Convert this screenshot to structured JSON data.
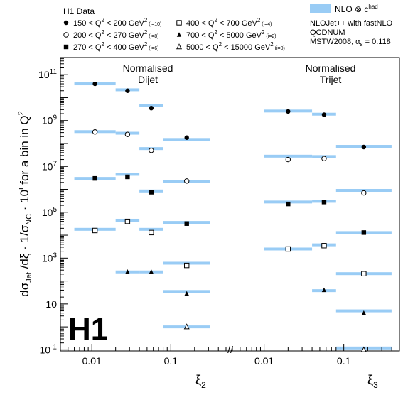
{
  "chart_data": {
    "type": "scatter",
    "y_axis": {
      "label_main": "dσ",
      "label_sub1": "Jet",
      "label_mid1": " /dξ · 1/σ",
      "label_sub2": "NC",
      "label_mid2": " · 10",
      "label_sup": "i",
      "label_tail": " for a bin in Q",
      "label_sup2": "2",
      "scale": "log",
      "ylim_log10": [
        -1.05,
        11.75
      ],
      "ticks": [
        {
          "value": 0.1,
          "label": "10",
          "sup": "-1"
        },
        {
          "value": 10,
          "label": "10",
          "sup": ""
        },
        {
          "value": 1000,
          "label": "10",
          "sup": "3"
        },
        {
          "value": 100000,
          "label": "10",
          "sup": "5"
        },
        {
          "value": 10000000,
          "label": "10",
          "sup": "7"
        },
        {
          "value": 1000000000,
          "label": "10",
          "sup": "9"
        },
        {
          "value": 100000000000,
          "label": "10",
          "sup": "11"
        }
      ]
    },
    "panels": [
      {
        "id": "dijet",
        "title_line1": "Normalised",
        "title_line2": "Dijet",
        "x_label": "ξ",
        "x_label_sub": "2",
        "x_scale": "log",
        "xlim": [
          0.004,
          0.5
        ],
        "x_ticks": [
          {
            "value": 0.01,
            "label": "0.01"
          },
          {
            "value": 0.1,
            "label": "0.1"
          }
        ],
        "bins": [
          [
            0.006,
            0.02
          ],
          [
            0.02,
            0.04
          ],
          [
            0.04,
            0.08
          ],
          [
            0.08,
            0.316
          ]
        ],
        "series": [
          {
            "q2_index": 10,
            "marker": "filled-circle",
            "data": [
              40000000000.0,
              20000000000.0,
              3500000000.0,
              180000000.0
            ],
            "nlo": [
              40000000000.0,
              22000000000.0,
              4500000000.0,
              150000000.0
            ]
          },
          {
            "q2_index": 8,
            "marker": "open-circle",
            "data": [
              320000000.0,
              250000000.0,
              50000000.0,
              2300000.0
            ],
            "nlo": [
              330000000.0,
              280000000.0,
              60000000.0,
              2200000.0
            ]
          },
          {
            "q2_index": 6,
            "marker": "filled-square",
            "data": [
              3000000.0,
              3500000.0,
              750000.0,
              32000.0
            ],
            "nlo": [
              3000000.0,
              4500000.0,
              850000.0,
              36000.0
            ]
          },
          {
            "q2_index": 4,
            "marker": "open-square",
            "data": [
              16000.0,
              40000.0,
              13000.0,
              480
            ],
            "nlo": [
              18000.0,
              45000.0,
              18000.0,
              600
            ]
          },
          {
            "q2_index": 2,
            "marker": "filled-triangle",
            "data": [
              null,
              250,
              250,
              28
            ],
            "nlo": [
              null,
              250,
              250,
              35
            ]
          },
          {
            "q2_index": 0,
            "marker": "open-triangle",
            "data": [
              null,
              null,
              null,
              1
            ],
            "nlo": [
              null,
              null,
              null,
              1
            ]
          }
        ]
      },
      {
        "id": "trijet",
        "title_line1": "Normalised",
        "title_line2": "Trijet",
        "x_label": "ξ",
        "x_label_sub": "3",
        "x_scale": "log",
        "xlim": [
          0.004,
          0.5
        ],
        "x_ticks": [
          {
            "value": 0.01,
            "label": "0.01"
          },
          {
            "value": 0.1,
            "label": "0.1"
          }
        ],
        "bins": [
          [
            0.01,
            0.04
          ],
          [
            0.04,
            0.08
          ],
          [
            0.08,
            0.398
          ]
        ],
        "series": [
          {
            "q2_index": 10,
            "marker": "filled-circle",
            "data": [
              2500000000.0,
              1800000000.0,
              70000000.0
            ],
            "nlo": [
              2600000000.0,
              1900000000.0,
              75000000.0
            ]
          },
          {
            "q2_index": 8,
            "marker": "open-circle",
            "data": [
              20000000.0,
              22000000.0,
              700000.0
            ],
            "nlo": [
              28000000.0,
              27000000.0,
              900000.0
            ]
          },
          {
            "q2_index": 6,
            "marker": "filled-square",
            "data": [
              230000.0,
              280000.0,
              13000.0
            ],
            "nlo": [
              280000.0,
              300000.0,
              13000.0
            ]
          },
          {
            "q2_index": 4,
            "marker": "open-square",
            "data": [
              2500.0,
              3500.0,
              210
            ],
            "nlo": [
              2500.0,
              3800.0,
              210
            ]
          },
          {
            "q2_index": 2,
            "marker": "filled-triangle",
            "data": [
              null,
              40,
              4
            ],
            "nlo": [
              null,
              38,
              5
            ]
          },
          {
            "q2_index": 0,
            "marker": "open-triangle",
            "data": [
              null,
              null,
              0.1
            ],
            "nlo": [
              null,
              null,
              0.12
            ]
          }
        ]
      }
    ],
    "legend": {
      "header": "H1 Data",
      "entries": [
        {
          "marker": "filled-circle",
          "lo": "150",
          "hi": "200",
          "i": "(i=10)"
        },
        {
          "marker": "open-circle",
          "lo": "200",
          "hi": "270",
          "i": "(i=8)"
        },
        {
          "marker": "filled-square",
          "lo": "270",
          "hi": "400",
          "i": "(i=6)"
        },
        {
          "marker": "open-square",
          "lo": "400",
          "hi": "700",
          "i": "(i=4)"
        },
        {
          "marker": "filled-triangle",
          "lo": "700",
          "hi": "5000",
          "i": "(i=2)"
        },
        {
          "marker": "open-triangle",
          "lo": "5000",
          "hi": "15000",
          "i": "(i=0)"
        }
      ],
      "unit": "GeV",
      "unit_sup": "2",
      "q_symbol": "Q",
      "q_sup": "2",
      "lt": "<",
      "nlo_label": "NLO ⊗ c",
      "nlo_sup": "had",
      "nlo_color": "#99ccf5",
      "info_lines": [
        "NLOJet++ with fastNLO",
        "QCDNUM"
      ],
      "info_last_prefix": "MSTW2008, α",
      "info_last_sub": "s",
      "info_last_suffix": " = 0.118"
    },
    "logo": "H1",
    "axis_break": "//"
  }
}
